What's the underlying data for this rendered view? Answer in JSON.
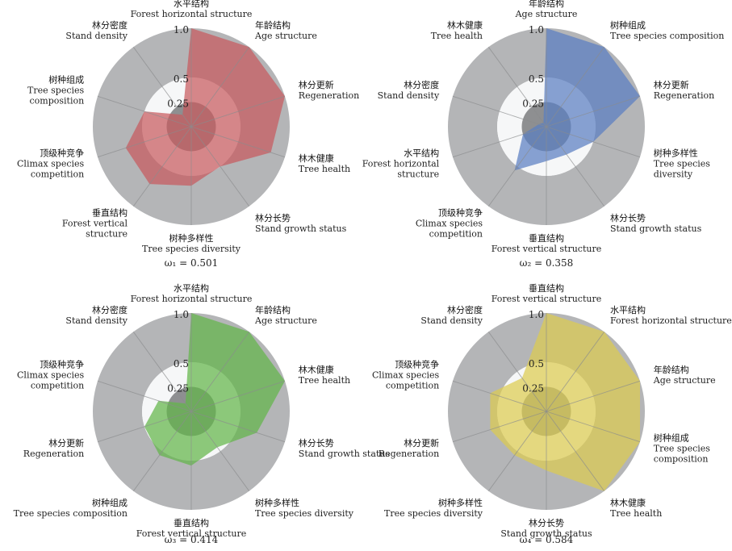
{
  "chart_data": [
    {
      "type": "polar-area",
      "color": "#c85a5e",
      "ticks": [
        "0.25",
        "0.5",
        "1.0"
      ],
      "omega": "ω₁ = 0.501",
      "axes": [
        {
          "cn": "水平结构",
          "en": [
            "Forest horizontal structure"
          ],
          "value": 1.0
        },
        {
          "cn": "年龄结构",
          "en": [
            "Age structure"
          ],
          "value": 1.0
        },
        {
          "cn": "林分更新",
          "en": [
            "Regeneration"
          ],
          "value": 1.0
        },
        {
          "cn": "林木健康",
          "en": [
            "Tree health"
          ],
          "value": 0.85
        },
        {
          "cn": "林分长势",
          "en": [
            "Stand growth status"
          ],
          "value": 0.5
        },
        {
          "cn": "树种多样性",
          "en": [
            "Tree species diversity"
          ],
          "value": 0.6
        },
        {
          "cn": "垂直结构",
          "en": [
            "Forest vertical",
            "structure"
          ],
          "value": 0.72
        },
        {
          "cn": "顶级种竞争",
          "en": [
            "Climax species",
            "competition"
          ],
          "value": 0.7
        },
        {
          "cn": "树种组成",
          "en": [
            "Tree species",
            "composition"
          ],
          "value": 0.5
        },
        {
          "cn": "林分密度",
          "en": [
            "Stand density"
          ],
          "value": 0.15
        }
      ]
    },
    {
      "type": "polar-area",
      "color": "#5a7ec2",
      "ticks": [
        "0.25",
        "0.5",
        "1.0"
      ],
      "omega": "ω₂ = 0.358",
      "axes": [
        {
          "cn": "年龄结构",
          "en": [
            "Age structure"
          ],
          "value": 1.0
        },
        {
          "cn": "树种组成",
          "en": [
            "Tree species composition"
          ],
          "value": 1.0
        },
        {
          "cn": "林分更新",
          "en": [
            "Regeneration"
          ],
          "value": 1.0
        },
        {
          "cn": "树种多样性",
          "en": [
            "Tree species",
            "diversity"
          ],
          "value": 0.5
        },
        {
          "cn": "林分长势",
          "en": [
            "Stand growth status"
          ],
          "value": 0.35
        },
        {
          "cn": "垂直结构",
          "en": [
            "Forest vertical  structure"
          ],
          "value": 0.35
        },
        {
          "cn": "顶级种竞争",
          "en": [
            "Climax species",
            "competition"
          ],
          "value": 0.55
        },
        {
          "cn": "水平结构",
          "en": [
            "Forest horizontal",
            "structure"
          ],
          "value": 0.25
        },
        {
          "cn": "林分密度",
          "en": [
            "Stand density"
          ],
          "value": 0.08
        },
        {
          "cn": "林木健康",
          "en": [
            "Tree health"
          ],
          "value": 0.05
        }
      ]
    },
    {
      "type": "polar-area",
      "color": "#62b64a",
      "ticks": [
        "0.25",
        "0.5",
        "1.0"
      ],
      "omega": "ω₃ = 0.414",
      "axes": [
        {
          "cn": "水平结构",
          "en": [
            "Forest horizontal structure"
          ],
          "value": 1.0
        },
        {
          "cn": "年龄结构",
          "en": [
            "Age structure"
          ],
          "value": 1.0
        },
        {
          "cn": "林木健康",
          "en": [
            "Tree health"
          ],
          "value": 1.0
        },
        {
          "cn": "林分长势",
          "en": [
            "Stand growth status"
          ],
          "value": 0.7
        },
        {
          "cn": "树种多样性",
          "en": [
            "Tree species diversity"
          ],
          "value": 0.45
        },
        {
          "cn": "垂直结构",
          "en": [
            "Forest vertical  structure"
          ],
          "value": 0.55
        },
        {
          "cn": "树种组成",
          "en": [
            "Tree species composition"
          ],
          "value": 0.55
        },
        {
          "cn": "林分更新",
          "en": [
            "Regeneration"
          ],
          "value": 0.5
        },
        {
          "cn": "顶级种竞争",
          "en": [
            "Climax species",
            "competition"
          ],
          "value": 0.35
        },
        {
          "cn": "林分密度",
          "en": [
            "Stand density"
          ],
          "value": 0.1
        }
      ]
    },
    {
      "type": "polar-area",
      "color": "#dccc50",
      "ticks": [
        "0.25",
        "0.5",
        "1.0"
      ],
      "omega": "ω₄ = 0.584",
      "axes": [
        {
          "cn": "垂直结构",
          "en": [
            "Forest vertical  structure"
          ],
          "value": 1.0
        },
        {
          "cn": "水平结构",
          "en": [
            "Forest horizontal structure"
          ],
          "value": 1.0
        },
        {
          "cn": "年龄结构",
          "en": [
            "Age structure"
          ],
          "value": 1.0
        },
        {
          "cn": "树种组成",
          "en": [
            "Tree species",
            "composition"
          ],
          "value": 1.0
        },
        {
          "cn": "林木健康",
          "en": [
            "Tree health"
          ],
          "value": 1.0
        },
        {
          "cn": "林分长势",
          "en": [
            "Stand growth status"
          ],
          "value": 0.6
        },
        {
          "cn": "树种多样性",
          "en": [
            "Tree species diversity"
          ],
          "value": 0.55
        },
        {
          "cn": "林分更新",
          "en": [
            "Regeneration"
          ],
          "value": 0.6
        },
        {
          "cn": "顶级种竞争",
          "en": [
            "Climax species",
            "competition"
          ],
          "value": 0.6
        },
        {
          "cn": "林分密度",
          "en": [
            "Stand density"
          ],
          "value": 0.42
        }
      ]
    }
  ]
}
